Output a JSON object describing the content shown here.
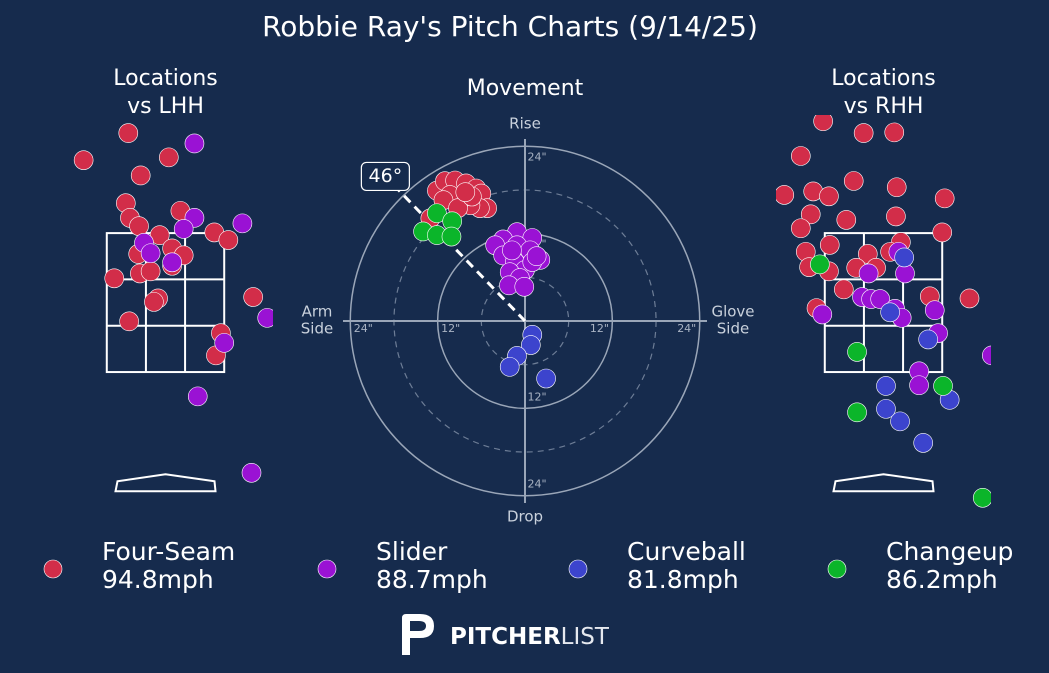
{
  "title": "Robbie Ray's Pitch Charts (9/14/25)",
  "legend": [
    {
      "name": "Four-Seam",
      "color": "#d22d49",
      "value": 94.8,
      "value_label": "94.8mph"
    },
    {
      "name": "Slider",
      "color": "#9a12d4",
      "value": 88.7,
      "value_label": "88.7mph"
    },
    {
      "name": "Curveball",
      "color": "#3c44cd",
      "value": 81.8,
      "value_label": "81.8mph"
    },
    {
      "name": "Changeup",
      "color": "#0bb52a",
      "value": 86.2,
      "value_label": "86.2mph"
    }
  ],
  "chart_data": [
    {
      "type": "scatter",
      "title": [
        "Locations",
        "vs LHH"
      ],
      "xlim": [
        -1.3,
        1.3
      ],
      "ylim": [
        -0.5,
        5.2
      ],
      "strike_zone": {
        "x": [
          -0.71,
          0.71
        ],
        "y": [
          1.5,
          3.5
        ]
      },
      "series": [
        {
          "x": [
            -0.45,
            -0.99,
            0.04,
            -0.3,
            -0.48,
            -0.43,
            -0.32,
            0.18,
            -0.07,
            0.59,
            0.76,
            0.08,
            0.22,
            -0.33,
            -0.62,
            -0.31,
            -0.18,
            0.08,
            -0.09,
            -0.14,
            1.06,
            -0.44,
            0.67,
            0.61
          ],
          "values": [
            4.94,
            4.55,
            4.59,
            4.33,
            3.93,
            3.72,
            3.6,
            3.82,
            3.47,
            3.51,
            3.4,
            3.28,
            3.18,
            3.2,
            2.85,
            2.92,
            2.95,
            3.03,
            2.56,
            2.51,
            2.58,
            2.23,
            2.06,
            1.74
          ]
        },
        {
          "x": [
            0.35,
            0.93,
            0.35,
            0.22,
            -0.26,
            -0.18,
            0.08,
            1.23,
            0.71,
            0.39,
            1.04
          ],
          "values": [
            4.79,
            3.64,
            3.72,
            3.56,
            3.36,
            3.21,
            3.08,
            2.28,
            1.92,
            1.15,
            0.05
          ]
        },
        {
          "x": [],
          "values": []
        },
        {
          "x": [],
          "values": []
        }
      ]
    },
    {
      "type": "polar",
      "title": "Movement",
      "rlim": [
        0,
        25
      ],
      "rticks": [
        {
          "value": 12,
          "label": "12\""
        },
        {
          "value": 24,
          "label": "24\""
        }
      ],
      "rminor": [
        6,
        18
      ],
      "direction_labels": {
        "top": "Rise",
        "bottom": "Drop",
        "left": [
          "Arm",
          "Side"
        ],
        "right": [
          "Glove",
          "Side"
        ]
      },
      "arm_angle": {
        "value": 46,
        "label": "46°"
      },
      "series": [
        {
          "x": [
            -12.1,
            -11.0,
            -9.6,
            -8.1,
            -6.7,
            -6.0,
            -5.2,
            -6.2,
            -7.5,
            -8.9,
            -10.3,
            -11.2,
            -9.2,
            -7.3,
            -13.0,
            -8.2
          ],
          "values": [
            17.9,
            19.2,
            19.3,
            18.9,
            18.2,
            17.5,
            15.5,
            15.5,
            15.9,
            16.6,
            17.3,
            16.6,
            15.5,
            17.1,
            14.1,
            17.7
          ]
        },
        {
          "x": [
            -1.1,
            1.0,
            -3.0,
            -4.1,
            -1.1,
            0.7,
            2.1,
            -3.0,
            -1.4,
            0,
            -2.1,
            -0.7,
            -2.2,
            -0.1,
            1.0,
            -1.8,
            1.6
          ],
          "values": [
            12.2,
            11.4,
            11.2,
            10.4,
            10.4,
            9.7,
            8.4,
            9.0,
            8.1,
            7.0,
            6.7,
            5.9,
            4.9,
            4.7,
            8.1,
            9.7,
            8.9
          ]
        },
        {
          "x": [
            1.0,
            0.8,
            -1.1,
            -2.1,
            2.9
          ],
          "values": [
            -1.9,
            -3.3,
            -4.8,
            -6.3,
            -7.9
          ]
        },
        {
          "x": [
            -12.1,
            -10.0,
            -14.0,
            -12.1,
            -10.1
          ],
          "values": [
            14.8,
            13.7,
            12.3,
            11.8,
            11.6
          ]
        }
      ]
    },
    {
      "type": "scatter",
      "title": [
        "Locations",
        "vs RHH"
      ],
      "xlim": [
        -1.3,
        1.3
      ],
      "ylim": [
        -0.5,
        5.2
      ],
      "strike_zone": {
        "x": [
          -0.71,
          0.71
        ],
        "y": [
          1.5,
          3.5
        ]
      },
      "series": [
        {
          "x": [
            -0.73,
            -0.24,
            0.13,
            -1.0,
            -0.36,
            -0.85,
            -0.66,
            0.16,
            0.74,
            -1.2,
            -0.88,
            -0.45,
            -1.0,
            0.15,
            0.71,
            -0.65,
            0.21,
            -0.94,
            -0.19,
            0.08,
            -0.9,
            -0.66,
            -0.33,
            -0.09,
            -0.48,
            0.56,
            1.04,
            -0.81
          ],
          "values": [
            5.11,
            4.94,
            4.95,
            4.61,
            4.25,
            4.1,
            4.03,
            4.16,
            4.0,
            4.05,
            3.77,
            3.69,
            3.57,
            3.74,
            3.51,
            3.33,
            3.37,
            3.23,
            3.2,
            3.23,
            3.01,
            2.95,
            3.0,
            3.0,
            2.69,
            2.59,
            2.56,
            2.42
          ]
        },
        {
          "x": [
            0.18,
            -0.18,
            0.26,
            -0.26,
            -0.15,
            -0.04,
            0.14,
            -0.74,
            0.22,
            0.62,
            0.66,
            1.31,
            0.43,
            0.43
          ],
          "values": [
            3.23,
            2.92,
            2.92,
            2.58,
            2.55,
            2.55,
            2.41,
            2.33,
            2.28,
            2.39,
            2.06,
            1.74,
            1.51,
            1.31
          ]
        },
        {
          "x": [
            0.25,
            0.08,
            0.54,
            0.03,
            0.8,
            0.2,
            0.48,
            0.03
          ],
          "values": [
            3.15,
            2.36,
            1.97,
            1.3,
            1.1,
            0.79,
            0.48,
            0.97
          ]
        },
        {
          "x": [
            -0.77,
            -0.32,
            0.72,
            -0.32,
            1.2
          ],
          "values": [
            3.05,
            1.79,
            1.3,
            0.92,
            -0.31
          ]
        }
      ]
    }
  ],
  "logo": {
    "bold": "PITCHER",
    "light": "LIST"
  }
}
